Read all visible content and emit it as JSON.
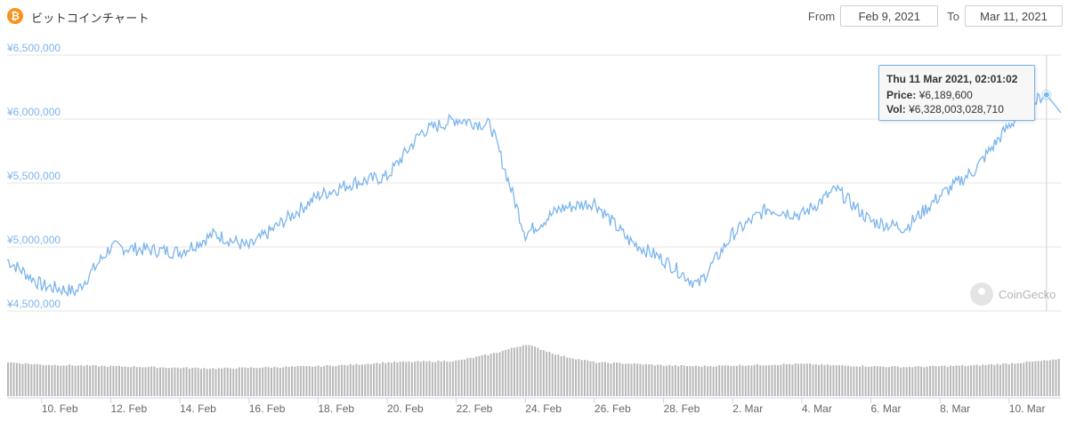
{
  "header": {
    "coin_icon": "bitcoin-icon",
    "title": "ビットコインチャート",
    "from_label": "From",
    "from_value": "Feb 9, 2021",
    "to_label": "To",
    "to_value": "Mar 11, 2021"
  },
  "tooltip": {
    "date": "Thu 11 Mar 2021, 02:01:02",
    "price_label": "Price:",
    "price_value": "¥6,189,600",
    "vol_label": "Vol:",
    "vol_value": "¥6,328,003,028,710"
  },
  "watermark": {
    "text": "CoinGecko",
    "icon": "coingecko-icon"
  },
  "colors": {
    "line": "#7cb5ec",
    "volume": "#b8b8b8",
    "grid": "#e6e6e6",
    "brand": "#f7931a"
  },
  "chart_data": {
    "type": "line",
    "series": [
      {
        "x": [
          "2021-02-09",
          "2021-02-10",
          "2021-02-11",
          "2021-02-12",
          "2021-02-13",
          "2021-02-14",
          "2021-02-15",
          "2021-02-16",
          "2021-02-17",
          "2021-02-18",
          "2021-02-19",
          "2021-02-20",
          "2021-02-21",
          "2021-02-22",
          "2021-02-23",
          "2021-02-24",
          "2021-02-25",
          "2021-02-26",
          "2021-02-27",
          "2021-02-28",
          "2021-03-01",
          "2021-03-02",
          "2021-03-03",
          "2021-03-04",
          "2021-03-05",
          "2021-03-06",
          "2021-03-07",
          "2021-03-08",
          "2021-03-09",
          "2021-03-10",
          "2021-03-11"
        ],
        "values": [
          4900000,
          4700000,
          4650000,
          5000000,
          4980000,
          4960000,
          5100000,
          5000000,
          5200000,
          5400000,
          5500000,
          5550000,
          5900000,
          6000000,
          5950000,
          5100000,
          5300000,
          5350000,
          5050000,
          4900000,
          4700000,
          5100000,
          5300000,
          5250000,
          5450000,
          5200000,
          5150000,
          5400000,
          5600000,
          5950000,
          6189600
        ]
      },
      {
        "x": [
          "2021-02-09",
          "2021-02-10",
          "2021-02-11",
          "2021-02-12",
          "2021-02-13",
          "2021-02-14",
          "2021-02-15",
          "2021-02-16",
          "2021-02-17",
          "2021-02-18",
          "2021-02-19",
          "2021-02-20",
          "2021-02-21",
          "2021-02-22",
          "2021-02-23",
          "2021-02-24",
          "2021-02-25",
          "2021-02-26",
          "2021-02-27",
          "2021-02-28",
          "2021-03-01",
          "2021-03-02",
          "2021-03-03",
          "2021-03-04",
          "2021-03-05",
          "2021-03-06",
          "2021-03-07",
          "2021-03-08",
          "2021-03-09",
          "2021-03-10",
          "2021-03-11"
        ],
        "values": [
          0.88,
          0.82,
          0.8,
          0.78,
          0.76,
          0.74,
          0.72,
          0.74,
          0.76,
          0.78,
          0.82,
          0.88,
          0.9,
          0.92,
          1.1,
          1.35,
          1.05,
          0.88,
          0.85,
          0.8,
          0.78,
          0.8,
          0.82,
          0.84,
          0.8,
          0.78,
          0.76,
          0.78,
          0.8,
          0.85,
          0.92
        ]
      }
    ],
    "y_ticks": [
      "¥4,500,000",
      "¥5,000,000",
      "¥5,500,000",
      "¥6,000,000",
      "¥6,500,000"
    ],
    "ylim": [
      4500000,
      6500000
    ],
    "x_ticks": [
      "10. Feb",
      "12. Feb",
      "14. Feb",
      "16. Feb",
      "18. Feb",
      "20. Feb",
      "22. Feb",
      "24. Feb",
      "26. Feb",
      "28. Feb",
      "2. Mar",
      "4. Mar",
      "6. Mar",
      "8. Mar",
      "10. Mar"
    ],
    "highlight": {
      "x": "2021-03-11T02:01:02",
      "y": 6189600
    }
  }
}
